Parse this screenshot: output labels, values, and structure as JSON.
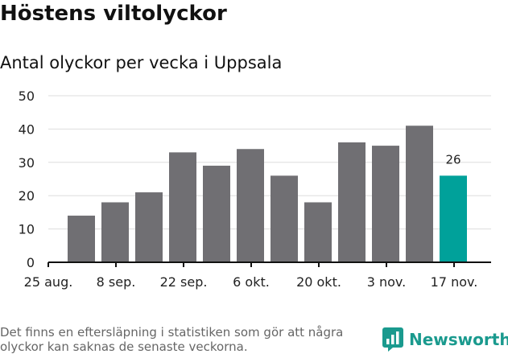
{
  "title": "Höstens viltolyckor",
  "subtitle": "Antal olyckor per vecka i Uppsala",
  "chart_data": {
    "type": "bar",
    "ylim": [
      0,
      50
    ],
    "yticks": [
      0,
      10,
      20,
      30,
      40,
      50
    ],
    "values": [
      14,
      18,
      21,
      33,
      29,
      34,
      26,
      18,
      36,
      35,
      41,
      26
    ],
    "xtick_labels": [
      "25 aug.",
      "8 sep.",
      "22 sep.",
      "6 okt.",
      "20 okt.",
      "3 nov.",
      "17 nov."
    ],
    "highlight_index": 11,
    "highlight_label": "26",
    "grid": true
  },
  "colors": {
    "bar": "#706f73",
    "highlight": "#00a19a",
    "grid": "#dddddd",
    "axis": "#111111"
  },
  "footnote": "Det finns en eftersläpning i statistiken som gör att några olyckor kan saknas de senaste veckorna.",
  "brand": {
    "name": "Newsworthy",
    "icon": "newsworthy-logo-icon"
  }
}
